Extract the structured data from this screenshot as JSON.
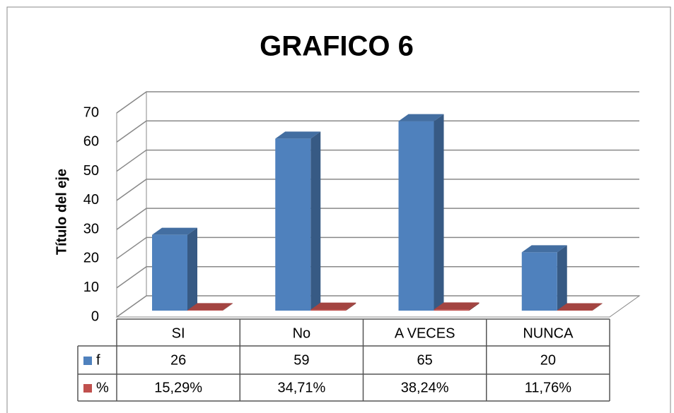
{
  "chart_data": {
    "type": "bar3d",
    "title": "GRAFICO 6",
    "y_axis_label": "Título del eje",
    "categories": [
      "SI",
      "No",
      "A VECES",
      "NUNCA"
    ],
    "series": [
      {
        "name": "f",
        "color": "#4f81bd",
        "values": [
          26,
          59,
          65,
          20
        ]
      },
      {
        "name": "%",
        "color": "#c0504d",
        "values": [
          0.1529,
          0.3471,
          0.3824,
          0.1176
        ],
        "value_labels": [
          "15,29%",
          "34,71%",
          "38,24%",
          "11,76%"
        ]
      }
    ],
    "ylim": [
      0,
      70
    ],
    "yticks": [
      0,
      10,
      20,
      30,
      40,
      50,
      60,
      70
    ],
    "grid": true,
    "data_table": true
  }
}
